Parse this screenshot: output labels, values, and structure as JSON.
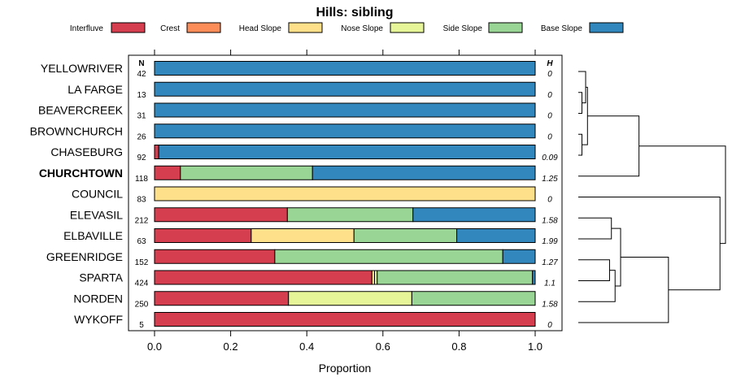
{
  "chart_data": {
    "type": "bar",
    "orientation": "horizontal",
    "stacked": true,
    "title": "Hills: sibling",
    "xlabel": "Proportion",
    "xlim": [
      0,
      1
    ],
    "xticks": [
      0.0,
      0.2,
      0.4,
      0.6,
      0.8,
      1.0
    ],
    "xtick_labels": [
      "0.0",
      "0.2",
      "0.4",
      "0.6",
      "0.8",
      "1.0"
    ],
    "n_header": "N",
    "h_header": "H",
    "legend_placement": "top",
    "highlighted": "CHURCHTOWN",
    "legend": [
      {
        "name": "Interfluve",
        "color": "#D53E4F"
      },
      {
        "name": "Crest",
        "color": "#FC8D59"
      },
      {
        "name": "Head Slope",
        "color": "#FEE08B"
      },
      {
        "name": "Nose Slope",
        "color": "#E6F598"
      },
      {
        "name": "Side Slope",
        "color": "#99D594"
      },
      {
        "name": "Base Slope",
        "color": "#3288BD"
      }
    ],
    "series_names": [
      "Interfluve",
      "Crest",
      "Head Slope",
      "Nose Slope",
      "Side Slope",
      "Base Slope"
    ],
    "categories": [
      "YELLOWRIVER",
      "LA FARGE",
      "BEAVERCREEK",
      "BROWNCHURCH",
      "CHASEBURG",
      "CHURCHTOWN",
      "COUNCIL",
      "ELEVASIL",
      "ELBAVILLE",
      "GREENRIDGE",
      "SPARTA",
      "NORDEN",
      "WYKOFF"
    ],
    "n": [
      "42",
      "13",
      "31",
      "26",
      "92",
      "118",
      "83",
      "212",
      "63",
      "152",
      "424",
      "250",
      "5"
    ],
    "h": [
      "0",
      "0",
      "0",
      "0",
      "0.09",
      "1.25",
      "0",
      "1.58",
      "1.99",
      "1.27",
      "1.1",
      "1.58",
      "0"
    ],
    "proportions": [
      [
        0,
        0,
        0,
        0,
        0,
        1
      ],
      [
        0,
        0,
        0,
        0,
        0,
        1
      ],
      [
        0,
        0,
        0,
        0,
        0,
        1
      ],
      [
        0,
        0,
        0,
        0,
        0,
        1
      ],
      [
        0.011,
        0,
        0,
        0,
        0,
        0.989
      ],
      [
        0.068,
        0,
        0,
        0,
        0.347,
        0.585
      ],
      [
        0,
        0,
        1,
        0,
        0,
        0
      ],
      [
        0.349,
        0,
        0,
        0,
        0.33,
        0.321
      ],
      [
        0.254,
        0,
        0.27,
        0,
        0.27,
        0.206
      ],
      [
        0.316,
        0,
        0,
        0,
        0.599,
        0.085
      ],
      [
        0.571,
        0,
        0.007,
        0.007,
        0.408,
        0.007
      ],
      [
        0.352,
        0,
        0,
        0.324,
        0.324,
        0
      ],
      [
        1,
        0,
        0,
        0,
        0,
        0
      ]
    ],
    "dendrogram": {
      "leaf_order": [
        "YELLOWRIVER",
        "LA FARGE",
        "BEAVERCREEK",
        "BROWNCHURCH",
        "CHASEBURG",
        "CHURCHTOWN",
        "COUNCIL",
        "ELEVASIL",
        "ELBAVILLE",
        "GREENRIDGE",
        "SPARTA",
        "NORDEN",
        "WYKOFF"
      ],
      "merges": [
        {
          "a": "BROWNCHURCH",
          "b": "CHASEBURG",
          "height": 0.02
        },
        {
          "a": "LA FARGE",
          "b": "BEAVERCREEK",
          "height": 0.02
        },
        {
          "a": "YELLOWRIVER",
          "b": "c2",
          "height": 0.04
        },
        {
          "a": "c3",
          "b": "c1",
          "height": 0.05
        },
        {
          "a": "GREENRIDGE",
          "b": "SPARTA",
          "height": 0.17
        },
        {
          "a": "ELEVASIL",
          "b": "ELBAVILLE",
          "height": 0.18
        },
        {
          "a": "c5",
          "b": "NORDEN",
          "height": 0.2
        },
        {
          "a": "c6",
          "b": "c7",
          "height": 0.23
        },
        {
          "a": "c4",
          "b": "CHURCHTOWN",
          "height": 0.33
        },
        {
          "a": "c8",
          "b": "WYKOFF",
          "height": 0.49
        },
        {
          "a": "c10",
          "b": "COUNCIL",
          "height": 0.77
        },
        {
          "a": "c9",
          "b": "c11",
          "height": 0.8
        }
      ],
      "max_height": 0.8
    }
  }
}
